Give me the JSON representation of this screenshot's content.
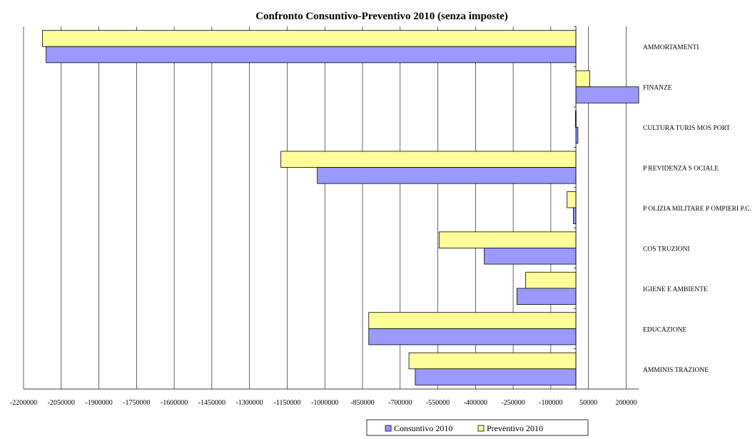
{
  "chart_data": {
    "type": "bar",
    "orientation": "horizontal",
    "title": "Confronto Consuntivo-Preventivo 2010 (senza imposte)",
    "xlabel": "",
    "ylabel": "",
    "xlim": [
      -2200000,
      250000
    ],
    "x_ticks": [
      -2200000,
      -2050000,
      -1900000,
      -1750000,
      -1600000,
      -1450000,
      -1300000,
      -1150000,
      -1000000,
      -850000,
      -700000,
      -550000,
      -400000,
      -250000,
      -100000,
      50000,
      200000
    ],
    "grid": "vertical",
    "legend_position": "bottom",
    "categories": [
      "AMMORTAMENTI",
      "FINANZE",
      "CULTURA TURIS MOS PORT",
      "P REVIDENZA S OCIALE",
      "P OLIZIA MILITARE P OMPIERI P.C.",
      "COS TRUZIONI",
      "IGIENE E AMBIENTE",
      "EDUCAZIONE",
      "AMMINIS TRAZIONE"
    ],
    "series": [
      {
        "name": "Preventivo 2010",
        "color": "#ffff99",
        "values": [
          -2125000,
          55000,
          -2000,
          -1175000,
          -35000,
          -545000,
          -200000,
          -825000,
          -665000
        ]
      },
      {
        "name": "Consuntivo 2010",
        "color": "#9999ff",
        "values": [
          -2110000,
          260000,
          8000,
          -1030000,
          -10000,
          -365000,
          -235000,
          -825000,
          -640000
        ]
      }
    ]
  }
}
